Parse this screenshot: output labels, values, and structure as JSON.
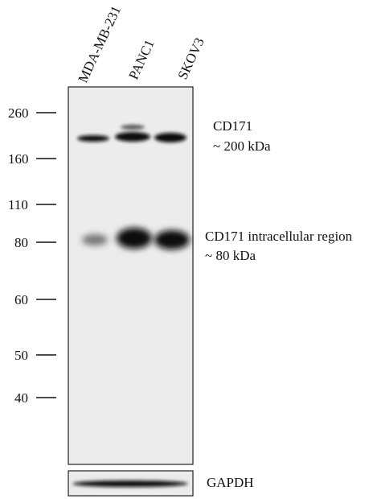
{
  "lanes": [
    "MDA-MB-231",
    "PANC1",
    "SKOV3"
  ],
  "markers": [
    "260",
    "160",
    "110",
    "80",
    "60",
    "50",
    "40"
  ],
  "annotations": [
    {
      "label": "CD171",
      "size": "~ 200 kDa"
    },
    {
      "label": "CD171 intracellular region",
      "size": "~ 80 kDa"
    }
  ],
  "loading_control": "GAPDH"
}
